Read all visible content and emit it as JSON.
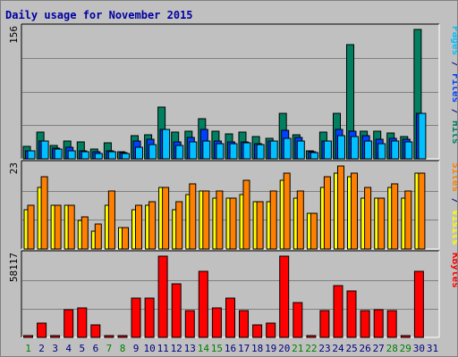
{
  "chart_data": {
    "type": "bar",
    "title": "Daily usage for November 2015",
    "title_color": "#0000a0",
    "categories": [
      "1",
      "2",
      "3",
      "4",
      "5",
      "6",
      "7",
      "8",
      "9",
      "10",
      "11",
      "12",
      "13",
      "14",
      "15",
      "16",
      "17",
      "18",
      "19",
      "20",
      "21",
      "22",
      "23",
      "24",
      "25",
      "26",
      "27",
      "28",
      "29",
      "30",
      "31"
    ],
    "weekend_days": [
      "1",
      "7",
      "8",
      "14",
      "15",
      "21",
      "22",
      "28",
      "29"
    ],
    "weekend_label_color": "#008000",
    "label_color": "#000080",
    "panels": [
      {
        "id": "pages_files_hits",
        "scale_label": "156",
        "ymax": 156,
        "right_label": [
          {
            "text": "Pages",
            "color": "#00c0ff"
          },
          {
            "text": " / ",
            "color": "#000080"
          },
          {
            "text": "Files",
            "color": "#0040ff"
          },
          {
            "text": " / ",
            "color": "#000080"
          },
          {
            "text": "Hits",
            "color": "#008060"
          }
        ],
        "series": [
          {
            "name": "Hits",
            "color": "#008060",
            "values": [
              15,
              32,
              16,
              21,
              20,
              12,
              19,
              9,
              28,
              29,
              62,
              32,
              33,
              48,
              33,
              30,
              32,
              27,
              25,
              55,
              29,
              10,
              32,
              55,
              138,
              33,
              33,
              31,
              27,
              156
            ]
          },
          {
            "name": "Files",
            "color": "#0040ff",
            "values": [
              10,
              21,
              13,
              14,
              10,
              9,
              10,
              8,
              21,
              24,
              35,
              20,
              26,
              35,
              22,
              20,
              20,
              18,
              22,
              34,
              26,
              9,
              22,
              36,
              33,
              28,
              24,
              25,
              24,
              55
            ]
          },
          {
            "name": "Pages",
            "color": "#00c0ff",
            "values": [
              10,
              21,
              12,
              10,
              9,
              6,
              9,
              6,
              14,
              17,
              35,
              16,
              20,
              22,
              18,
              18,
              19,
              17,
              22,
              25,
              21,
              8,
              22,
              28,
              27,
              21,
              18,
              22,
              20,
              55
            ]
          }
        ]
      },
      {
        "id": "visits_sites",
        "scale_label": "23",
        "ymax": 23,
        "right_label": [
          {
            "text": "Sites",
            "color": "#ff8000"
          },
          {
            "text": " / ",
            "color": "#000080"
          },
          {
            "text": "Visits",
            "color": "#ffff00"
          }
        ],
        "series": [
          {
            "name": "Visits",
            "color": "#ffff00",
            "values": [
              11,
              17,
              12,
              12,
              8,
              5,
              12,
              6,
              11,
              12,
              17,
              11,
              15,
              16,
              14,
              14,
              15,
              13,
              13,
              19,
              14,
              10,
              17,
              21,
              20,
              14,
              14,
              17,
              14,
              21
            ]
          },
          {
            "name": "Sites",
            "color": "#ff8000",
            "values": [
              12,
              20,
              12,
              12,
              9,
              7,
              16,
              6,
              12,
              13,
              17,
              13,
              18,
              16,
              16,
              14,
              19,
              13,
              16,
              21,
              16,
              10,
              20,
              23,
              21,
              17,
              14,
              18,
              16,
              21
            ]
          }
        ]
      },
      {
        "id": "kbytes",
        "scale_label": "58117",
        "ymax": 58117,
        "right_label": [
          {
            "text": "KBytes",
            "color": "#ff0000"
          }
        ],
        "series": [
          {
            "name": "KBytes",
            "color": "#ff0000",
            "values": [
              0,
              10000,
              0,
              20000,
              21000,
              9000,
              1000,
              0,
              28000,
              28000,
              58117,
              38000,
              19000,
              47000,
              21000,
              28000,
              19000,
              9000,
              10000,
              58117,
              25000,
              0,
              19000,
              37000,
              33000,
              19000,
              20000,
              19000,
              0,
              47000
            ]
          }
        ]
      }
    ]
  }
}
